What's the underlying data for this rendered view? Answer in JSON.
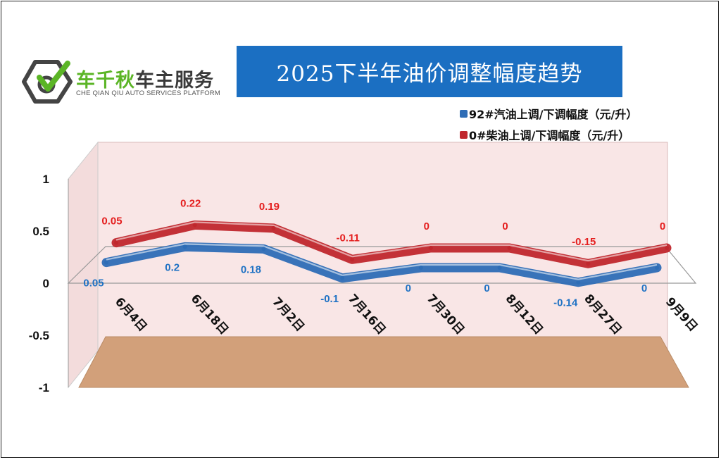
{
  "logo": {
    "text_accent": "车千秋",
    "text_rest": "车主服务",
    "subtitle": "CHE QIAN QIU AUTO SERVICES PLATFORM",
    "icon": "car-wheel-check-icon"
  },
  "colors": {
    "gasoline": "#2e6db6",
    "diesel": "#c0272d",
    "title_bg": "#1b6fc2",
    "floor": "#d2a07a",
    "back_wall": "#f9e6e6"
  },
  "chart_data": {
    "type": "line",
    "title": "2025下半年油价调整幅度趋势",
    "categories": [
      "6月4日",
      "6月18日",
      "7月2日",
      "7月16日",
      "7月30日",
      "8月12日",
      "8月27日",
      "9月9日"
    ],
    "series": [
      {
        "name": "92#汽油上调/下调幅度（元/升）",
        "values": [
          0.05,
          0.2,
          0.18,
          -0.1,
          0,
          0,
          -0.14,
          0
        ],
        "labels": [
          "0.05",
          "0.2",
          "0.18",
          "-0.1",
          "0",
          "0",
          "-0.14",
          "0"
        ]
      },
      {
        "name": "0#柴油上调/下调幅度（元/升）",
        "values": [
          0.05,
          0.22,
          0.19,
          -0.11,
          0,
          0,
          -0.15,
          0
        ],
        "labels": [
          "0.05",
          "0.22",
          "0.19",
          "-0.11",
          "0",
          "0",
          "-0.15",
          "0"
        ]
      }
    ],
    "y_ticks": [
      "1",
      "0.5",
      "0",
      "-0.5",
      "-1"
    ],
    "ylim": [
      -1,
      1
    ],
    "legend_position": "top-right",
    "grid": false,
    "style": "3d-line"
  }
}
